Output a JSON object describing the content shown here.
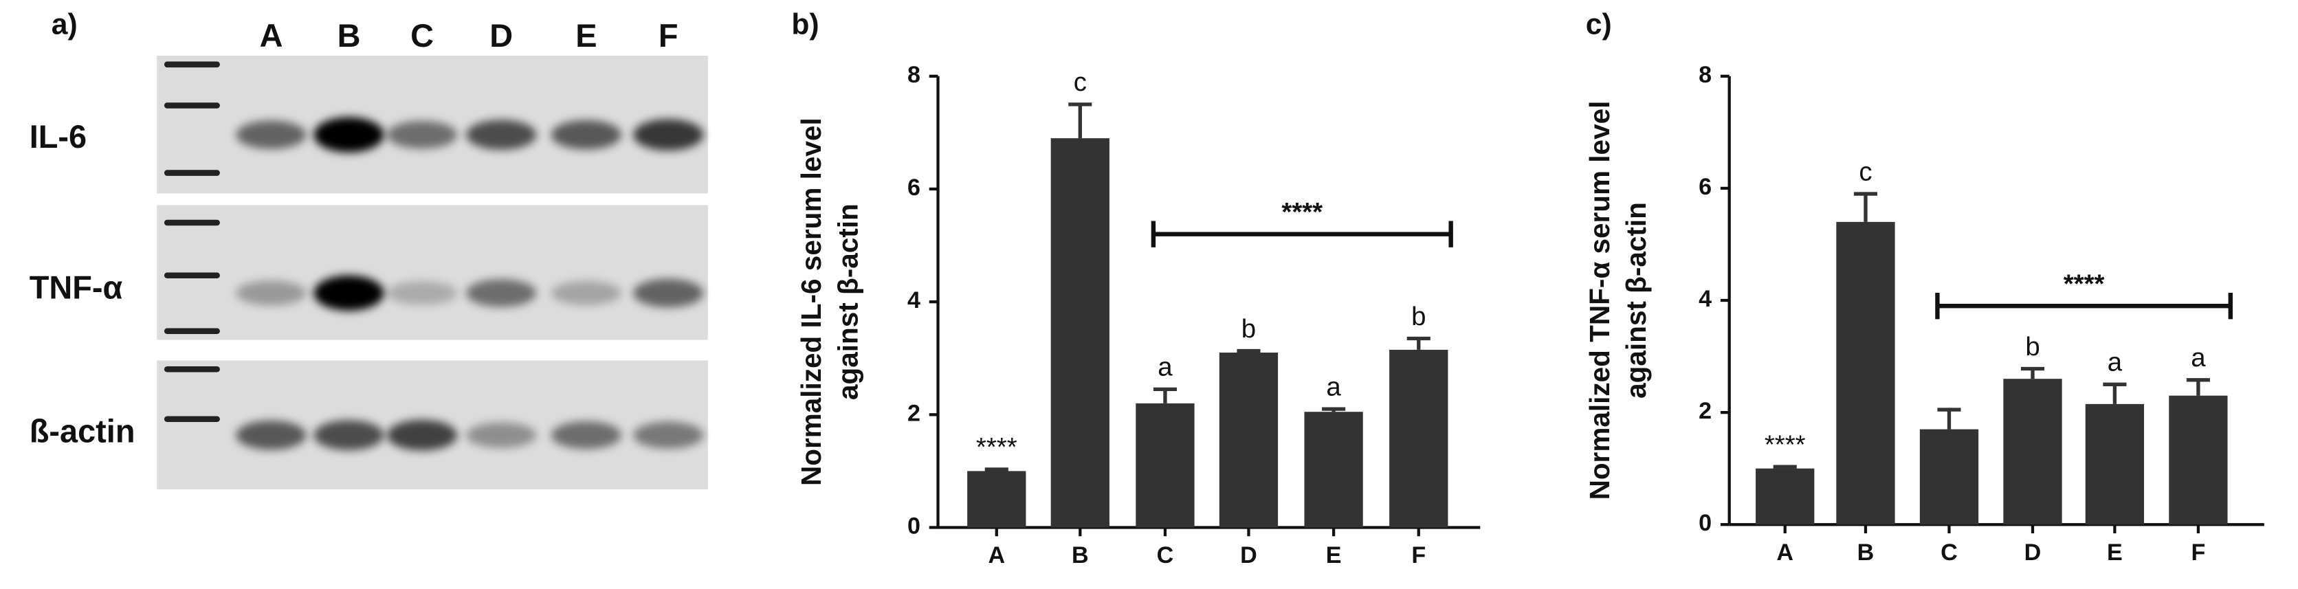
{
  "panel_a": {
    "panel_label": "a)",
    "lanes": [
      "A",
      "B",
      "C",
      "D",
      "E",
      "F"
    ],
    "rows": [
      "IL-6",
      "TNF-α",
      "ß-actin"
    ]
  },
  "chart_data": [
    {
      "type": "bar",
      "panel_label": "b)",
      "ylabel": [
        "Normalized IL-6 serum level",
        "against β-actin"
      ],
      "categories": [
        "A",
        "B",
        "C",
        "D",
        "E",
        "F"
      ],
      "values": [
        1.0,
        6.9,
        2.2,
        3.1,
        2.05,
        3.15
      ],
      "errors": [
        0.03,
        0.6,
        0.25,
        0.03,
        0.05,
        0.2
      ],
      "bar_labels": [
        "****",
        "c",
        "a",
        "b",
        "a",
        "b"
      ],
      "bracket": {
        "label": "****",
        "from": "C",
        "to": "F",
        "value": 5.2
      },
      "color": "#333333",
      "ylim": [
        0,
        8
      ],
      "yticks": [
        0,
        2,
        4,
        6,
        8
      ]
    },
    {
      "type": "bar",
      "panel_label": "c)",
      "ylabel": [
        "Normalized TNF-α serum level",
        "against β-actin"
      ],
      "categories": [
        "A",
        "B",
        "C",
        "D",
        "E",
        "F"
      ],
      "values": [
        1.0,
        5.4,
        1.7,
        2.6,
        2.15,
        2.3
      ],
      "errors": [
        0.03,
        0.5,
        0.35,
        0.18,
        0.35,
        0.28
      ],
      "bar_labels": [
        "****",
        "c",
        null,
        "b",
        "a",
        "a"
      ],
      "bracket": {
        "label": "****",
        "from": "C",
        "to": "F",
        "value": 3.9
      },
      "color": "#333333",
      "ylim": [
        0,
        8
      ],
      "yticks": [
        0,
        2,
        4,
        6,
        8
      ]
    }
  ]
}
